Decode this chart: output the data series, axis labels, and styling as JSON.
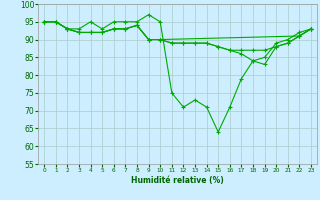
{
  "xlabel": "Humidité relative (%)",
  "background_color": "#cceeff",
  "grid_color": "#aacccc",
  "line_color": "#00aa00",
  "xlim": [
    -0.5,
    23.5
  ],
  "ylim": [
    55,
    100
  ],
  "yticks": [
    55,
    60,
    65,
    70,
    75,
    80,
    85,
    90,
    95,
    100
  ],
  "xticks": [
    0,
    1,
    2,
    3,
    4,
    5,
    6,
    7,
    8,
    9,
    10,
    11,
    12,
    13,
    14,
    15,
    16,
    17,
    18,
    19,
    20,
    21,
    22,
    23
  ],
  "series": [
    {
      "x": [
        0,
        1,
        2,
        3,
        4,
        5,
        6,
        7,
        8,
        9,
        10,
        11,
        12,
        13,
        14,
        15,
        16,
        17,
        18,
        19,
        20,
        21,
        22,
        23
      ],
      "y": [
        95,
        95,
        93,
        93,
        95,
        93,
        95,
        95,
        95,
        97,
        95,
        75,
        71,
        73,
        71,
        64,
        71,
        79,
        84,
        85,
        89,
        90,
        92,
        93
      ]
    },
    {
      "x": [
        0,
        1,
        2,
        3,
        4,
        5,
        6,
        7,
        8,
        9,
        10,
        11,
        12,
        13,
        14,
        15,
        16,
        17,
        18,
        19,
        20,
        21,
        22,
        23
      ],
      "y": [
        95,
        95,
        93,
        92,
        92,
        92,
        93,
        93,
        94,
        90,
        90,
        89,
        89,
        89,
        89,
        88,
        87,
        87,
        87,
        87,
        88,
        89,
        91,
        93
      ]
    },
    {
      "x": [
        0,
        1,
        2,
        3,
        4,
        5,
        6,
        7,
        8,
        9,
        10,
        11,
        12,
        13,
        14,
        15,
        16,
        17,
        18,
        19,
        20,
        21,
        22,
        23
      ],
      "y": [
        95,
        95,
        93,
        92,
        92,
        92,
        93,
        93,
        94,
        90,
        90,
        89,
        89,
        89,
        89,
        88,
        87,
        86,
        84,
        83,
        88,
        89,
        91,
        93
      ]
    },
    {
      "x": [
        0,
        1,
        2,
        3,
        4,
        5,
        6,
        7,
        8,
        9,
        10,
        22,
        23
      ],
      "y": [
        95,
        95,
        93,
        92,
        92,
        92,
        93,
        93,
        94,
        90,
        90,
        91,
        93
      ]
    }
  ]
}
